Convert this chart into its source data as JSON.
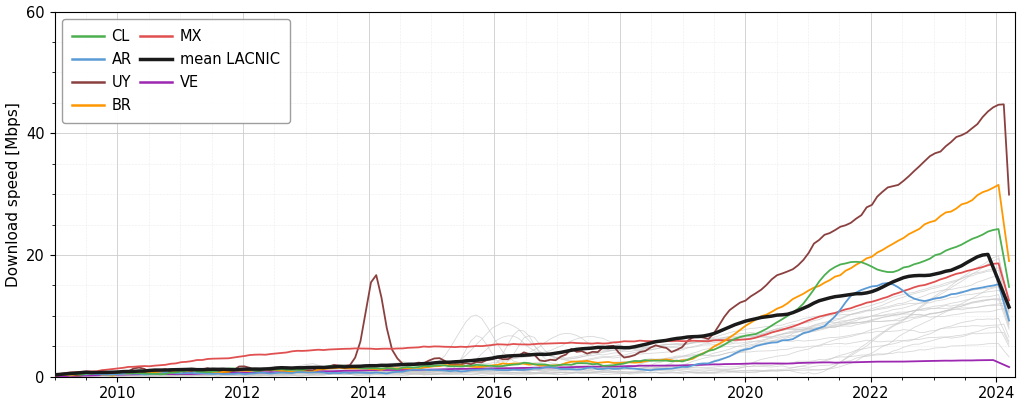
{
  "title": "",
  "ylabel": "Download speed [Mbps]",
  "xlabel": "",
  "ylim": [
    0,
    60
  ],
  "xlim": [
    2009.0,
    2024.3
  ],
  "xticks": [
    2010,
    2012,
    2014,
    2016,
    2018,
    2020,
    2022,
    2024
  ],
  "yticks": [
    0,
    20,
    40,
    60
  ],
  "background_color": "#ffffff",
  "grid_color": "#cccccc",
  "series": {
    "CL": {
      "color": "#4caf50",
      "lw": 1.3
    },
    "AR": {
      "color": "#5b9bd5",
      "lw": 1.3
    },
    "UY": {
      "color": "#8B4040",
      "lw": 1.3
    },
    "BR": {
      "color": "#ff9800",
      "lw": 1.3
    },
    "MX": {
      "color": "#e05050",
      "lw": 1.3
    },
    "mean_LACNIC": {
      "color": "#1a1a1a",
      "lw": 2.5
    },
    "VE": {
      "color": "#9c27b0",
      "lw": 1.3
    }
  },
  "ghost_color": "#c8c8c8",
  "ghost_lw": 0.6,
  "ghost_alpha": 0.7
}
